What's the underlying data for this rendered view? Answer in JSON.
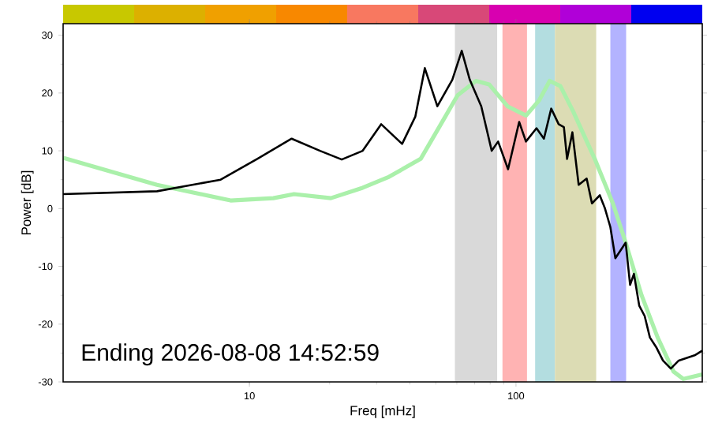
{
  "chart_data": {
    "type": "line",
    "xlabel": "Freq [mHz]",
    "ylabel": "Power [dB]",
    "log": "x",
    "xlim": [
      2,
      500
    ],
    "xticks": [
      10,
      100
    ],
    "ylim": [
      -30,
      32
    ],
    "yticks": [
      -30,
      -20,
      -10,
      0,
      10,
      20,
      30
    ],
    "annotations": [
      "Ending 2026-08-08 14:52:59"
    ],
    "bands": [
      {
        "axis": "x",
        "from": 59,
        "to": 85,
        "color": "#d9d9d9"
      },
      {
        "axis": "x",
        "from": 89,
        "to": 110,
        "color": "#ffb3b3"
      },
      {
        "axis": "x",
        "from": 118,
        "to": 140,
        "color": "#b3dde0"
      },
      {
        "axis": "x",
        "from": 140,
        "to": 200,
        "color": "#dcdcb4"
      },
      {
        "axis": "x",
        "from": 226,
        "to": 259,
        "color": "#b3b3ff"
      }
    ],
    "series": [
      {
        "color": "#aaf0aa",
        "x": [
          2,
          4.5,
          8.5,
          12.3,
          14.7,
          20.2,
          26.6,
          33.4,
          43.9,
          51.5,
          60.4,
          70.8,
          79.3,
          93,
          109,
          122,
          133.8,
          146.8,
          164,
          197.5,
          231,
          258,
          296,
          340,
          390,
          425,
          500
        ],
        "values": [
          8.8,
          4.1,
          1.4,
          1.8,
          2.5,
          1.8,
          3.6,
          5.5,
          8.6,
          14.1,
          19.6,
          22.1,
          21.5,
          17.7,
          16.1,
          18.7,
          22.1,
          21.2,
          16.8,
          8.6,
          0.9,
          -5.9,
          -15.0,
          -22.3,
          -28.2,
          -29.5,
          -28.7
        ]
      },
      {
        "color": "#000000",
        "x": [
          2,
          4.5,
          7.8,
          10.7,
          14.4,
          18.4,
          22.2,
          26.6,
          31.2,
          37.4,
          41.9,
          45.5,
          50.7,
          57.7,
          62.6,
          67.1,
          74.1,
          81.1,
          85.7,
          93.4,
          102.8,
          109,
          119.4,
          127.3,
          135.6,
          144.6,
          151.3,
          155.5,
          162.8,
          171.9,
          184.2,
          192.8,
          206.3,
          215.8,
          226,
          236,
          258,
          268,
          277,
          290,
          304,
          318,
          337,
          356,
          381,
          408,
          468,
          500
        ],
        "values": [
          2.5,
          3.0,
          5.0,
          8.6,
          12.1,
          10.0,
          8.5,
          10.0,
          14.6,
          11.2,
          15.9,
          24.3,
          17.7,
          22.3,
          27.3,
          22.3,
          17.7,
          10.0,
          11.6,
          6.8,
          15.0,
          11.6,
          13.9,
          12.1,
          17.3,
          14.6,
          14.1,
          8.6,
          13.2,
          4.1,
          5.2,
          0.9,
          2.3,
          0.0,
          -3.2,
          -8.6,
          -5.9,
          -13.2,
          -11.3,
          -16.8,
          -18.6,
          -22.3,
          -24.1,
          -26.3,
          -27.7,
          -26.3,
          -25.4,
          -24.6
        ]
      }
    ]
  }
}
